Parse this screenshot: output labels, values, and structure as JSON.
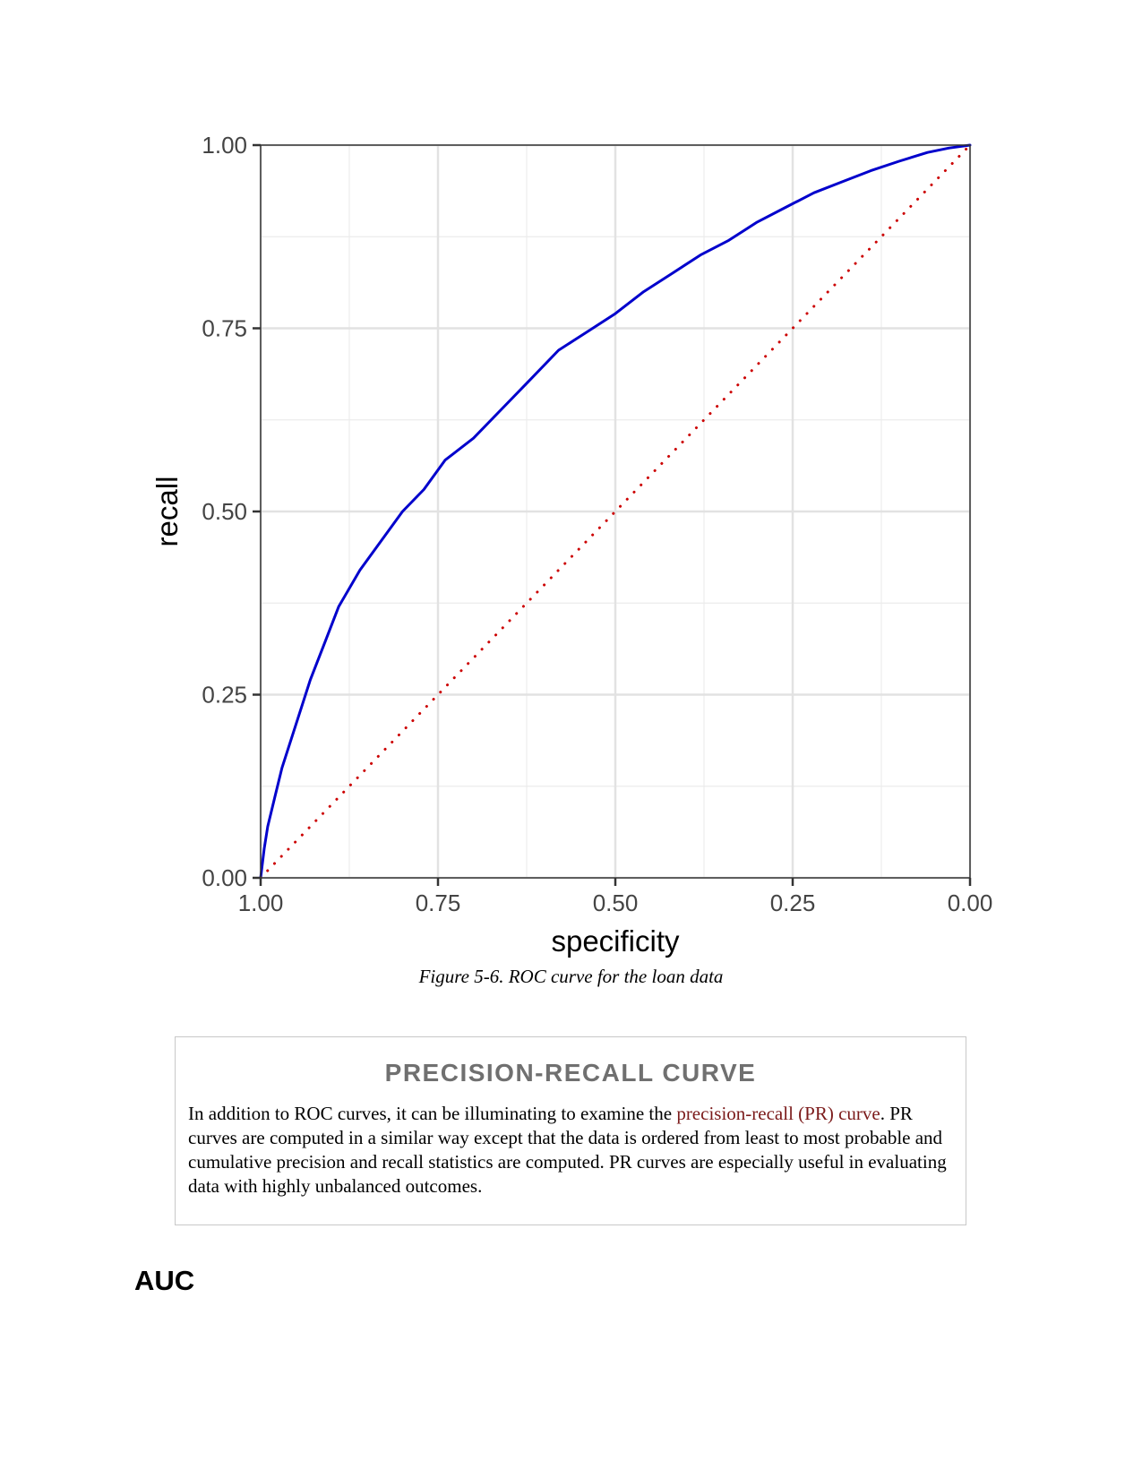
{
  "chart_data": {
    "type": "line",
    "xlabel": "specificity",
    "ylabel": "recall",
    "x_reversed": true,
    "xlim": [
      1.0,
      0.0
    ],
    "ylim": [
      0.0,
      1.0
    ],
    "x_ticks": [
      "1.00",
      "0.75",
      "0.50",
      "0.25",
      "0.00"
    ],
    "y_ticks": [
      "0.00",
      "0.25",
      "0.50",
      "0.75",
      "1.00"
    ],
    "grid": true,
    "legend": "none",
    "series": [
      {
        "style": "solid",
        "color": "#0000cc",
        "x": [
          1.0,
          0.995,
          0.99,
          0.98,
          0.97,
          0.95,
          0.93,
          0.91,
          0.89,
          0.86,
          0.83,
          0.8,
          0.77,
          0.74,
          0.7,
          0.66,
          0.62,
          0.58,
          0.54,
          0.5,
          0.46,
          0.42,
          0.38,
          0.34,
          0.3,
          0.26,
          0.22,
          0.18,
          0.14,
          0.1,
          0.06,
          0.03,
          0.0
        ],
        "y": [
          0.0,
          0.04,
          0.07,
          0.11,
          0.15,
          0.21,
          0.27,
          0.32,
          0.37,
          0.42,
          0.46,
          0.5,
          0.53,
          0.57,
          0.6,
          0.64,
          0.68,
          0.72,
          0.745,
          0.77,
          0.8,
          0.825,
          0.85,
          0.87,
          0.895,
          0.915,
          0.935,
          0.95,
          0.965,
          0.978,
          0.99,
          0.996,
          1.0
        ]
      },
      {
        "style": "dotted",
        "color": "#cc0000",
        "x": [
          1.0,
          0.0
        ],
        "y": [
          0.0,
          1.0
        ]
      }
    ]
  },
  "caption": "Figure 5-6. ROC curve for the loan data",
  "sidebar": {
    "title": "PRECISION-RECALL CURVE",
    "text_before": "In addition to ROC curves, it can be illuminating to examine the ",
    "link_text": "precision-recall (PR) curve",
    "text_after": ". PR curves are computed in a similar way except that the data is ordered from least to most probable and cumulative precision and recall statistics are computed. PR curves are especially useful in evaluating data with highly unbalanced outcomes."
  },
  "heading": "AUC"
}
